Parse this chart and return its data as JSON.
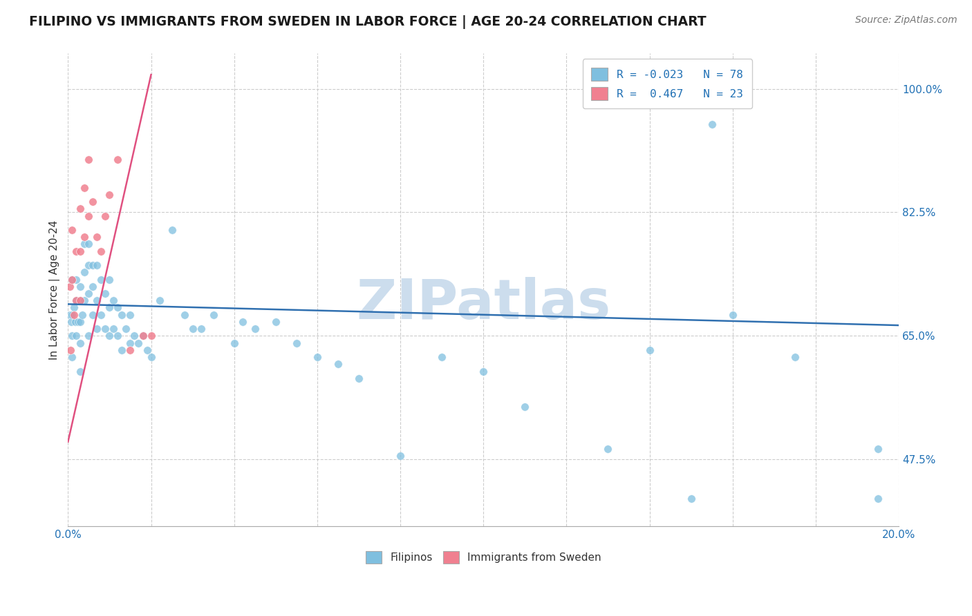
{
  "title": "FILIPINO VS IMMIGRANTS FROM SWEDEN IN LABOR FORCE | AGE 20-24 CORRELATION CHART",
  "source": "Source: ZipAtlas.com",
  "ylabel": "In Labor Force | Age 20-24",
  "xlim": [
    0.0,
    0.2
  ],
  "ylim": [
    0.38,
    1.05
  ],
  "yticks": [
    0.475,
    0.65,
    0.825,
    1.0
  ],
  "r_filipino": -0.023,
  "n_filipino": 78,
  "r_sweden": 0.467,
  "n_sweden": 23,
  "color_filipino": "#7fbfdf",
  "color_sweden": "#f08090",
  "trendline_color_filipino": "#3070b0",
  "trendline_color_sweden": "#e05080",
  "watermark": "ZIPatlas",
  "watermark_color": "#ccdded",
  "legend_label_1": "R = -0.023   N = 78",
  "legend_label_2": "R =  0.467   N = 23",
  "fil_x": [
    0.0005,
    0.0008,
    0.001,
    0.001,
    0.001,
    0.001,
    0.0015,
    0.0018,
    0.002,
    0.002,
    0.002,
    0.0025,
    0.003,
    0.003,
    0.003,
    0.003,
    0.003,
    0.0035,
    0.004,
    0.004,
    0.004,
    0.005,
    0.005,
    0.005,
    0.005,
    0.006,
    0.006,
    0.006,
    0.007,
    0.007,
    0.007,
    0.008,
    0.008,
    0.009,
    0.009,
    0.01,
    0.01,
    0.01,
    0.011,
    0.011,
    0.012,
    0.012,
    0.013,
    0.013,
    0.014,
    0.015,
    0.015,
    0.016,
    0.017,
    0.018,
    0.019,
    0.02,
    0.022,
    0.025,
    0.028,
    0.03,
    0.032,
    0.035,
    0.04,
    0.042,
    0.045,
    0.05,
    0.055,
    0.06,
    0.065,
    0.07,
    0.08,
    0.09,
    0.1,
    0.11,
    0.13,
    0.14,
    0.15,
    0.155,
    0.16,
    0.175,
    0.195,
    0.195
  ],
  "fil_y": [
    0.68,
    0.67,
    0.73,
    0.68,
    0.65,
    0.62,
    0.69,
    0.67,
    0.73,
    0.7,
    0.65,
    0.67,
    0.72,
    0.7,
    0.67,
    0.64,
    0.6,
    0.68,
    0.78,
    0.74,
    0.7,
    0.78,
    0.75,
    0.71,
    0.65,
    0.75,
    0.72,
    0.68,
    0.75,
    0.7,
    0.66,
    0.73,
    0.68,
    0.71,
    0.66,
    0.73,
    0.69,
    0.65,
    0.7,
    0.66,
    0.69,
    0.65,
    0.68,
    0.63,
    0.66,
    0.68,
    0.64,
    0.65,
    0.64,
    0.65,
    0.63,
    0.62,
    0.7,
    0.8,
    0.68,
    0.66,
    0.66,
    0.68,
    0.64,
    0.67,
    0.66,
    0.67,
    0.64,
    0.62,
    0.61,
    0.59,
    0.48,
    0.62,
    0.6,
    0.55,
    0.49,
    0.63,
    0.42,
    0.95,
    0.68,
    0.62,
    0.49,
    0.42
  ],
  "swe_x": [
    0.0004,
    0.0006,
    0.001,
    0.001,
    0.0015,
    0.002,
    0.002,
    0.003,
    0.003,
    0.003,
    0.004,
    0.004,
    0.005,
    0.005,
    0.006,
    0.007,
    0.008,
    0.009,
    0.01,
    0.012,
    0.015,
    0.018,
    0.02
  ],
  "swe_y": [
    0.72,
    0.63,
    0.8,
    0.73,
    0.68,
    0.77,
    0.7,
    0.83,
    0.77,
    0.7,
    0.86,
    0.79,
    0.9,
    0.82,
    0.84,
    0.79,
    0.77,
    0.82,
    0.85,
    0.9,
    0.63,
    0.65,
    0.65
  ],
  "fil_trendline_x": [
    0.0,
    0.2
  ],
  "fil_trendline_y": [
    0.695,
    0.665
  ],
  "swe_trendline_x": [
    0.0,
    0.02
  ],
  "swe_trendline_y": [
    0.5,
    1.02
  ]
}
